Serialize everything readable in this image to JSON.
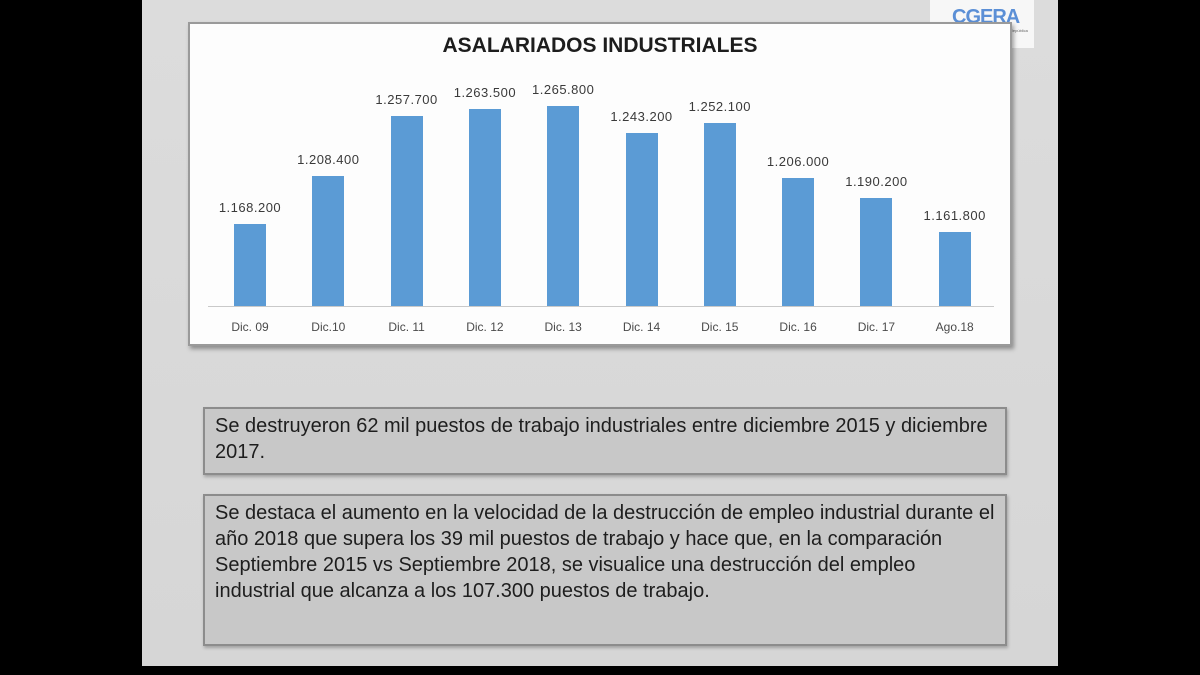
{
  "logo": {
    "name": "CGERA",
    "subtitle": "Confederación General Empresaria de la República Argentina"
  },
  "chart_data": {
    "type": "bar",
    "title": "ASALARIADOS INDUSTRIALES",
    "xlabel": "",
    "ylabel": "",
    "categories": [
      "Dic. 09",
      "Dic.10",
      "Dic. 11",
      "Dic. 12",
      "Dic. 13",
      "Dic. 14",
      "Dic. 15",
      "Dic. 16",
      "Dic. 17",
      "Ago.18"
    ],
    "values": [
      1168200,
      1208400,
      1257700,
      1263500,
      1265800,
      1243200,
      1252100,
      1206000,
      1190200,
      1161800
    ],
    "value_labels": [
      "1.168.200",
      "1.208.400",
      "1.257.700",
      "1.263.500",
      "1.265.800",
      "1.243.200",
      "1.252.100",
      "1.206.000",
      "1.190.200",
      "1.161.800"
    ],
    "bar_color": "#5b9bd5",
    "grid": false,
    "legend": "none"
  },
  "notes": [
    "Se destruyeron 62 mil puestos de trabajo industriales entre diciembre 2015 y diciembre 2017.",
    "Se destaca el aumento en la velocidad de la destrucción de empleo industrial durante el año 2018 que supera los 39 mil puestos de trabajo y hace que, en la comparación Septiembre 2015 vs Septiembre 2018, se visualice una destrucción del empleo industrial que alcanza a los 107.300 puestos de trabajo."
  ]
}
